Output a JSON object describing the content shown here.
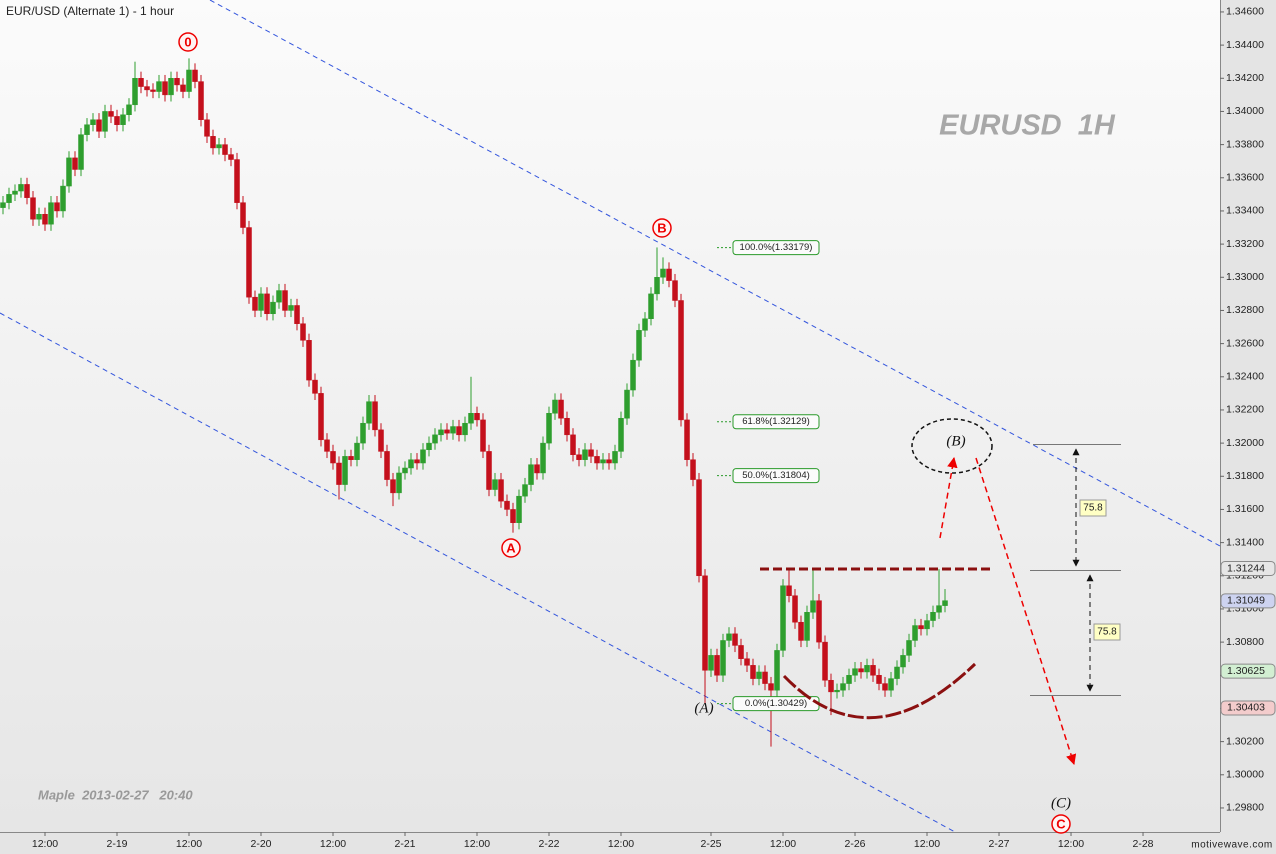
{
  "chart_data": {
    "type": "candlestick",
    "title": "EUR/USD (Alternate 1) - 1 hour",
    "watermark": "EURUSD  1H",
    "footer": "Maple  2013-02-27   20:40",
    "brand": "motivewave.com",
    "up_color": "#2e9e2e",
    "down_color": "#c4101c",
    "open": [
      1.3342,
      1.3345,
      1.335,
      1.3352,
      1.3356,
      1.3348,
      1.3335,
      1.3338,
      1.3332,
      1.3345,
      1.334,
      1.3355,
      1.3372,
      1.3365,
      1.3386,
      1.3392,
      1.3395,
      1.3388,
      1.34,
      1.3397,
      1.3392,
      1.3398,
      1.3404,
      1.342,
      1.3415,
      1.3413,
      1.3412,
      1.3418,
      1.341,
      1.342,
      1.3416,
      1.3412,
      1.3425,
      1.3418,
      1.3395,
      1.3385,
      1.3378,
      1.338,
      1.3374,
      1.3371,
      1.3345,
      1.333,
      1.3288,
      1.328,
      1.329,
      1.3278,
      1.3285,
      1.3292,
      1.328,
      1.3283,
      1.3272,
      1.3262,
      1.3238,
      1.323,
      1.3202,
      1.3195,
      1.3188,
      1.3175,
      1.3192,
      1.319,
      1.32,
      1.3212,
      1.3225,
      1.3208,
      1.3195,
      1.3178,
      1.317,
      1.3182,
      1.3185,
      1.319,
      1.3188,
      1.3196,
      1.32,
      1.3205,
      1.3208,
      1.3206,
      1.321,
      1.3205,
      1.3212,
      1.3218,
      1.3214,
      1.3195,
      1.3172,
      1.3178,
      1.3165,
      1.316,
      1.3152,
      1.3168,
      1.3175,
      1.3187,
      1.3182,
      1.32,
      1.3218,
      1.3226,
      1.3215,
      1.3205,
      1.3193,
      1.319,
      1.3196,
      1.3192,
      1.3188,
      1.319,
      1.3188,
      1.3195,
      1.3215,
      1.3232,
      1.325,
      1.3268,
      1.3275,
      1.329,
      1.33,
      1.3305,
      1.3298,
      1.3286,
      1.3214,
      1.319,
      1.3178,
      1.312,
      1.3063,
      1.3072,
      1.306,
      1.3081,
      1.3085,
      1.3078,
      1.307,
      1.3066,
      1.3058,
      1.3062,
      1.3055,
      1.3051,
      1.3075,
      1.3114,
      1.3108,
      1.3092,
      1.3081,
      1.3098,
      1.3105,
      1.308,
      1.3057,
      1.305,
      1.3051,
      1.3055,
      1.306,
      1.3064,
      1.3062,
      1.3066,
      1.306,
      1.3055,
      1.3051,
      1.3058,
      1.3065,
      1.3072,
      1.3081,
      1.309,
      1.3088,
      1.3093,
      1.3098,
      1.3102
    ],
    "high": [
      1.3349,
      1.3354,
      1.3356,
      1.336,
      1.336,
      1.3352,
      1.3342,
      1.3342,
      1.3349,
      1.3349,
      1.3359,
      1.3376,
      1.3376,
      1.339,
      1.3396,
      1.3399,
      1.3399,
      1.3404,
      1.3404,
      1.3401,
      1.3402,
      1.3408,
      1.343,
      1.3424,
      1.3419,
      1.3417,
      1.3422,
      1.3422,
      1.3424,
      1.3424,
      1.342,
      1.3432,
      1.3429,
      1.3422,
      1.3399,
      1.3389,
      1.3384,
      1.3384,
      1.3378,
      1.3375,
      1.3349,
      1.3334,
      1.3292,
      1.3294,
      1.3294,
      1.3289,
      1.3296,
      1.3296,
      1.3287,
      1.3287,
      1.3276,
      1.3266,
      1.3242,
      1.3234,
      1.3206,
      1.3199,
      1.3192,
      1.3196,
      1.3196,
      1.3204,
      1.3216,
      1.3229,
      1.3229,
      1.3212,
      1.3199,
      1.3182,
      1.3186,
      1.3189,
      1.3194,
      1.3194,
      1.32,
      1.3204,
      1.3209,
      1.3212,
      1.3212,
      1.3214,
      1.3214,
      1.3216,
      1.324,
      1.3222,
      1.3218,
      1.3199,
      1.3182,
      1.3182,
      1.3169,
      1.3164,
      1.3172,
      1.3179,
      1.3191,
      1.3191,
      1.3204,
      1.3222,
      1.323,
      1.323,
      1.3219,
      1.3209,
      1.3197,
      1.32,
      1.32,
      1.3196,
      1.3194,
      1.3194,
      1.3199,
      1.3219,
      1.3236,
      1.3254,
      1.3272,
      1.3279,
      1.3294,
      1.3318,
      1.3312,
      1.3309,
      1.3302,
      1.329,
      1.3218,
      1.3194,
      1.3182,
      1.3124,
      1.3076,
      1.3076,
      1.3085,
      1.3089,
      1.3089,
      1.3082,
      1.3074,
      1.307,
      1.3066,
      1.3066,
      1.3059,
      1.3079,
      1.3118,
      1.3124,
      1.3112,
      1.3096,
      1.3102,
      1.3124,
      1.3109,
      1.3084,
      1.3061,
      1.3055,
      1.3059,
      1.3064,
      1.3068,
      1.3068,
      1.307,
      1.307,
      1.3064,
      1.3059,
      1.3062,
      1.3069,
      1.3076,
      1.3085,
      1.3094,
      1.3094,
      1.3097,
      1.3102,
      1.3124,
      1.3112
    ],
    "low": [
      1.3338,
      1.3341,
      1.3346,
      1.3348,
      1.3344,
      1.3331,
      1.3331,
      1.3328,
      1.3328,
      1.3336,
      1.3336,
      1.3351,
      1.3361,
      1.3361,
      1.3382,
      1.3388,
      1.3384,
      1.3384,
      1.3393,
      1.3388,
      1.3388,
      1.3394,
      1.34,
      1.3411,
      1.3409,
      1.3408,
      1.3408,
      1.3406,
      1.3406,
      1.3412,
      1.3408,
      1.3408,
      1.3414,
      1.3391,
      1.3381,
      1.3374,
      1.3374,
      1.337,
      1.3367,
      1.3341,
      1.3326,
      1.3284,
      1.3276,
      1.3276,
      1.3274,
      1.3274,
      1.3281,
      1.3276,
      1.3276,
      1.3268,
      1.3258,
      1.3234,
      1.3226,
      1.3198,
      1.3191,
      1.3184,
      1.3166,
      1.3171,
      1.3186,
      1.3186,
      1.3196,
      1.3208,
      1.3204,
      1.3191,
      1.3174,
      1.3162,
      1.3166,
      1.3178,
      1.3181,
      1.3184,
      1.3184,
      1.3192,
      1.3196,
      1.3201,
      1.3202,
      1.3202,
      1.3201,
      1.3201,
      1.3208,
      1.321,
      1.3191,
      1.3168,
      1.3168,
      1.3161,
      1.3156,
      1.3146,
      1.3148,
      1.3164,
      1.3171,
      1.3178,
      1.3178,
      1.3196,
      1.3214,
      1.3211,
      1.3201,
      1.3189,
      1.3186,
      1.3186,
      1.3188,
      1.3184,
      1.3184,
      1.3184,
      1.3184,
      1.3191,
      1.3211,
      1.3228,
      1.3246,
      1.3264,
      1.3271,
      1.3286,
      1.3296,
      1.3294,
      1.3282,
      1.321,
      1.3186,
      1.3174,
      1.3116,
      1.3043,
      1.3059,
      1.3056,
      1.3056,
      1.3077,
      1.3074,
      1.3066,
      1.3062,
      1.3054,
      1.3054,
      1.3051,
      1.3017,
      1.3047,
      1.3071,
      1.3104,
      1.3088,
      1.3077,
      1.3077,
      1.3094,
      1.3076,
      1.3053,
      1.3036,
      1.3046,
      1.3047,
      1.3051,
      1.3056,
      1.3058,
      1.3058,
      1.3056,
      1.3051,
      1.3047,
      1.3047,
      1.3054,
      1.3061,
      1.3068,
      1.3077,
      1.3084,
      1.3084,
      1.3089,
      1.3094,
      1.3098
    ],
    "close": [
      1.3345,
      1.335,
      1.3352,
      1.3356,
      1.3348,
      1.3335,
      1.3338,
      1.3332,
      1.3345,
      1.334,
      1.3355,
      1.3372,
      1.3365,
      1.3386,
      1.3392,
      1.3395,
      1.3388,
      1.34,
      1.3397,
      1.3392,
      1.3398,
      1.3404,
      1.342,
      1.3415,
      1.3413,
      1.3412,
      1.3418,
      1.341,
      1.342,
      1.3416,
      1.3412,
      1.3425,
      1.3418,
      1.3395,
      1.3385,
      1.3378,
      1.338,
      1.3374,
      1.3371,
      1.3345,
      1.333,
      1.3288,
      1.328,
      1.329,
      1.3278,
      1.3285,
      1.3292,
      1.328,
      1.3283,
      1.3272,
      1.3262,
      1.3238,
      1.323,
      1.3202,
      1.3195,
      1.3188,
      1.3175,
      1.3192,
      1.319,
      1.32,
      1.3212,
      1.3225,
      1.3208,
      1.3195,
      1.3178,
      1.317,
      1.3182,
      1.3185,
      1.319,
      1.3188,
      1.3196,
      1.32,
      1.3205,
      1.3208,
      1.3206,
      1.321,
      1.3205,
      1.3212,
      1.3218,
      1.3214,
      1.3195,
      1.3172,
      1.3178,
      1.3165,
      1.316,
      1.3152,
      1.3168,
      1.3175,
      1.3187,
      1.3182,
      1.32,
      1.3218,
      1.3226,
      1.3215,
      1.3205,
      1.3193,
      1.319,
      1.3196,
      1.3192,
      1.3188,
      1.319,
      1.3188,
      1.3195,
      1.3215,
      1.3232,
      1.325,
      1.3268,
      1.3275,
      1.329,
      1.33,
      1.3305,
      1.3298,
      1.3286,
      1.3214,
      1.319,
      1.3178,
      1.312,
      1.3063,
      1.3072,
      1.306,
      1.3081,
      1.3085,
      1.3078,
      1.307,
      1.3066,
      1.3058,
      1.3062,
      1.3055,
      1.3051,
      1.3075,
      1.3114,
      1.3108,
      1.3092,
      1.3081,
      1.3098,
      1.3105,
      1.308,
      1.3057,
      1.305,
      1.3051,
      1.3055,
      1.306,
      1.3064,
      1.3062,
      1.3066,
      1.306,
      1.3055,
      1.3051,
      1.3058,
      1.3065,
      1.3072,
      1.3081,
      1.309,
      1.3088,
      1.3093,
      1.3098,
      1.3102,
      1.3105
    ],
    "xlim": [
      -0.5,
      202.83
    ],
    "xticks": [
      {
        "value": 7,
        "label": "12:00"
      },
      {
        "value": 19,
        "label": "2-19"
      },
      {
        "value": 31,
        "label": "12:00"
      },
      {
        "value": 43,
        "label": "2-20"
      },
      {
        "value": 55,
        "label": "12:00"
      },
      {
        "value": 67,
        "label": "2-21"
      },
      {
        "value": 79,
        "label": "12:00"
      },
      {
        "value": 91,
        "label": "2-22"
      },
      {
        "value": 103,
        "label": "12:00"
      },
      {
        "value": 118,
        "label": "2-25"
      },
      {
        "value": 130,
        "label": "12:00"
      },
      {
        "value": 142,
        "label": "2-26"
      },
      {
        "value": 154,
        "label": "12:00"
      },
      {
        "value": 166,
        "label": "2-27"
      },
      {
        "value": 178,
        "label": "12:00"
      },
      {
        "value": 190,
        "label": "2-28"
      }
    ],
    "ylim": [
      1.29655,
      1.34672
    ],
    "yticks": [
      {
        "value": 1.298,
        "label": "1.29800"
      },
      {
        "value": 1.3,
        "label": "1.30000"
      },
      {
        "value": 1.302,
        "label": "1.30200"
      },
      {
        "value": 1.304,
        "label": "1.30400"
      },
      {
        "value": 1.306,
        "label": "1.30600"
      },
      {
        "value": 1.308,
        "label": "1.30800"
      },
      {
        "value": 1.31,
        "label": "1.31000"
      },
      {
        "value": 1.312,
        "label": "1.31200"
      },
      {
        "value": 1.314,
        "label": "1.31400"
      },
      {
        "value": 1.316,
        "label": "1.31600"
      },
      {
        "value": 1.318,
        "label": "1.31800"
      },
      {
        "value": 1.32,
        "label": "1.32000"
      },
      {
        "value": 1.322,
        "label": "1.32200"
      },
      {
        "value": 1.324,
        "label": "1.32400"
      },
      {
        "value": 1.326,
        "label": "1.32600"
      },
      {
        "value": 1.328,
        "label": "1.32800"
      },
      {
        "value": 1.33,
        "label": "1.33000"
      },
      {
        "value": 1.332,
        "label": "1.33200"
      },
      {
        "value": 1.334,
        "label": "1.33400"
      },
      {
        "value": 1.336,
        "label": "1.33600"
      },
      {
        "value": 1.338,
        "label": "1.33800"
      },
      {
        "value": 1.34,
        "label": "1.34000"
      },
      {
        "value": 1.342,
        "label": "1.34200"
      },
      {
        "value": 1.344,
        "label": "1.34400"
      },
      {
        "value": 1.346,
        "label": "1.34600"
      }
    ],
    "price_markers": [
      {
        "value": 1.31244,
        "color": "#e6e6e6"
      },
      {
        "value": 1.31049,
        "color": "#cdd3f0"
      },
      {
        "value": 1.30625,
        "color": "#d2efd2"
      },
      {
        "value": 1.30403,
        "color": "#f3cccc"
      }
    ],
    "fib_levels": [
      {
        "value": 1.33179,
        "label": "100.0%(1.33179)"
      },
      {
        "value": 1.32129,
        "label": "61.8%(1.32129)"
      },
      {
        "value": 1.31804,
        "label": "50.0%(1.31804)"
      },
      {
        "value": 1.30429,
        "label": "0.0%(1.30429)"
      }
    ],
    "wave_labels": [
      "0",
      "B",
      "A",
      "C",
      "(A)",
      "(B)",
      "(C)"
    ],
    "measures": [
      75.8,
      75.8
    ]
  }
}
